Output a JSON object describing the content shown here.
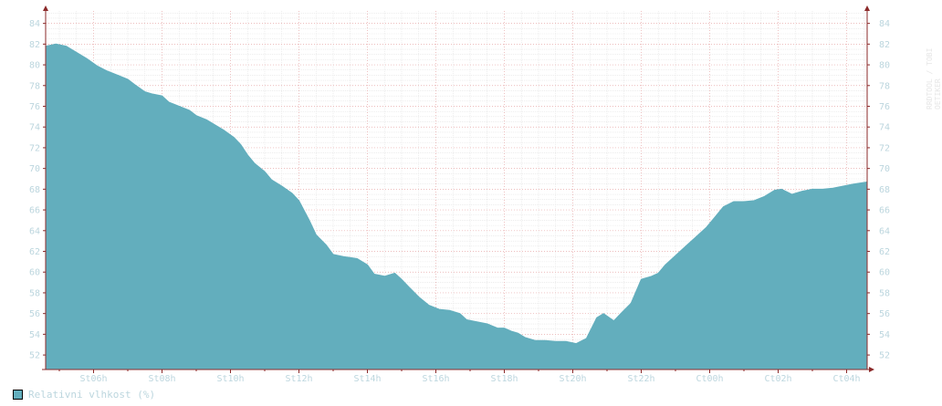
{
  "chart_data": {
    "type": "area",
    "title": "",
    "xlabel": "",
    "ylabel": "",
    "x_range_hours": [
      4.6,
      28.6
    ],
    "ylim": [
      50.6,
      85.2
    ],
    "y_ticks": [
      52,
      54,
      56,
      58,
      60,
      62,
      64,
      66,
      68,
      70,
      72,
      74,
      76,
      78,
      80,
      82,
      84
    ],
    "x_ticks": [
      {
        "label": "St06h",
        "hour": 6
      },
      {
        "label": "St08h",
        "hour": 8
      },
      {
        "label": "St10h",
        "hour": 10
      },
      {
        "label": "St12h",
        "hour": 12
      },
      {
        "label": "St14h",
        "hour": 14
      },
      {
        "label": "St16h",
        "hour": 16
      },
      {
        "label": "St18h",
        "hour": 18
      },
      {
        "label": "St20h",
        "hour": 20
      },
      {
        "label": "St22h",
        "hour": 22
      },
      {
        "label": "Ct00h",
        "hour": 24
      },
      {
        "label": "Ct02h",
        "hour": 26
      },
      {
        "label": "Ct04h",
        "hour": 28
      }
    ],
    "grid": true,
    "legend_position": "bottom-left",
    "series": [
      {
        "name": "Relativni vlhkost (%)",
        "color": "#63aebd",
        "points": [
          [
            4.6,
            81.8
          ],
          [
            4.9,
            82.0
          ],
          [
            5.2,
            81.8
          ],
          [
            5.5,
            81.2
          ],
          [
            5.8,
            80.6
          ],
          [
            6.1,
            79.9
          ],
          [
            6.4,
            79.4
          ],
          [
            6.7,
            79.0
          ],
          [
            7.0,
            78.6
          ],
          [
            7.2,
            78.1
          ],
          [
            7.5,
            77.4
          ],
          [
            7.7,
            77.2
          ],
          [
            8.0,
            77.0
          ],
          [
            8.2,
            76.4
          ],
          [
            8.5,
            76.0
          ],
          [
            8.8,
            75.6
          ],
          [
            9.0,
            75.1
          ],
          [
            9.3,
            74.7
          ],
          [
            9.6,
            74.1
          ],
          [
            9.8,
            73.7
          ],
          [
            10.1,
            73.0
          ],
          [
            10.3,
            72.3
          ],
          [
            10.5,
            71.3
          ],
          [
            10.7,
            70.5
          ],
          [
            11.0,
            69.7
          ],
          [
            11.2,
            68.9
          ],
          [
            11.5,
            68.3
          ],
          [
            11.8,
            67.6
          ],
          [
            12.0,
            66.9
          ],
          [
            12.3,
            65.0
          ],
          [
            12.5,
            63.6
          ],
          [
            12.8,
            62.6
          ],
          [
            13.0,
            61.7
          ],
          [
            13.3,
            61.5
          ],
          [
            13.7,
            61.3
          ],
          [
            14.0,
            60.7
          ],
          [
            14.2,
            59.8
          ],
          [
            14.5,
            59.6
          ],
          [
            14.8,
            59.9
          ],
          [
            15.0,
            59.3
          ],
          [
            15.2,
            58.6
          ],
          [
            15.5,
            57.6
          ],
          [
            15.8,
            56.8
          ],
          [
            16.1,
            56.4
          ],
          [
            16.4,
            56.3
          ],
          [
            16.7,
            56.0
          ],
          [
            16.9,
            55.4
          ],
          [
            17.2,
            55.2
          ],
          [
            17.5,
            55.0
          ],
          [
            17.8,
            54.6
          ],
          [
            18.0,
            54.6
          ],
          [
            18.2,
            54.3
          ],
          [
            18.4,
            54.1
          ],
          [
            18.6,
            53.7
          ],
          [
            18.9,
            53.4
          ],
          [
            19.2,
            53.4
          ],
          [
            19.5,
            53.3
          ],
          [
            19.8,
            53.3
          ],
          [
            20.1,
            53.1
          ],
          [
            20.4,
            53.6
          ],
          [
            20.7,
            55.6
          ],
          [
            20.9,
            56.0
          ],
          [
            21.2,
            55.3
          ],
          [
            21.4,
            56.0
          ],
          [
            21.7,
            57.0
          ],
          [
            22.0,
            59.3
          ],
          [
            22.3,
            59.6
          ],
          [
            22.5,
            59.9
          ],
          [
            22.7,
            60.7
          ],
          [
            23.0,
            61.6
          ],
          [
            23.3,
            62.5
          ],
          [
            23.6,
            63.4
          ],
          [
            23.9,
            64.3
          ],
          [
            24.2,
            65.5
          ],
          [
            24.4,
            66.3
          ],
          [
            24.7,
            66.8
          ],
          [
            25.0,
            66.8
          ],
          [
            25.3,
            66.9
          ],
          [
            25.6,
            67.3
          ],
          [
            25.9,
            67.9
          ],
          [
            26.1,
            68.0
          ],
          [
            26.4,
            67.5
          ],
          [
            26.7,
            67.8
          ],
          [
            27.0,
            68.0
          ],
          [
            27.3,
            68.0
          ],
          [
            27.6,
            68.1
          ],
          [
            27.9,
            68.3
          ],
          [
            28.2,
            68.5
          ],
          [
            28.6,
            68.7
          ]
        ]
      }
    ]
  },
  "legend": {
    "label": "Relativni vlhkost (%)"
  },
  "watermark": "RRDTOOL / TOBI OETIKER"
}
